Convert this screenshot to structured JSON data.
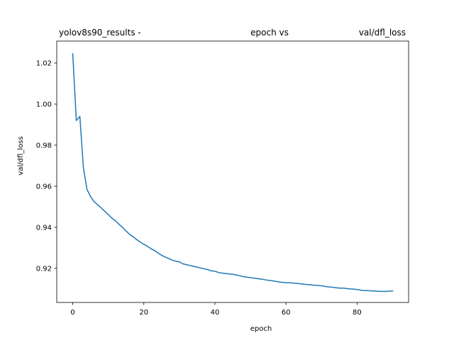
{
  "chart_data": {
    "type": "line",
    "title_segments": [
      "yolov8s90_results -",
      "epoch vs",
      "val/dfl_loss"
    ],
    "xlabel": "epoch",
    "ylabel": "val/dfl_loss",
    "xlim": [
      -4.5,
      94.5
    ],
    "ylim": [
      0.9034,
      1.0307
    ],
    "xticks": [
      0,
      20,
      40,
      60,
      80
    ],
    "xtick_labels": [
      "0",
      "20",
      "40",
      "60",
      "80"
    ],
    "yticks": [
      0.92,
      0.94,
      0.96,
      0.98,
      1.0,
      1.02
    ],
    "ytick_labels": [
      "0.92",
      "0.94",
      "0.96",
      "0.98",
      "1.00",
      "1.02"
    ],
    "grid": false,
    "series": [
      {
        "color": "#1f77b4",
        "x": [
          0,
          1,
          2,
          3,
          4,
          5,
          6,
          7,
          8,
          9,
          10,
          11,
          12,
          13,
          14,
          15,
          16,
          17,
          18,
          19,
          20,
          21,
          22,
          23,
          24,
          25,
          26,
          27,
          28,
          29,
          30,
          31,
          32,
          33,
          34,
          35,
          36,
          37,
          38,
          39,
          40,
          41,
          42,
          43,
          44,
          45,
          46,
          47,
          48,
          49,
          50,
          51,
          52,
          53,
          54,
          55,
          56,
          57,
          58,
          59,
          60,
          61,
          62,
          63,
          64,
          65,
          66,
          67,
          68,
          69,
          70,
          71,
          72,
          73,
          74,
          75,
          76,
          77,
          78,
          79,
          80,
          81,
          82,
          83,
          84,
          85,
          86,
          87,
          88,
          89,
          90
        ],
        "y": [
          1.0245,
          0.992,
          0.994,
          0.969,
          0.9585,
          0.955,
          0.9525,
          0.951,
          0.9495,
          0.9478,
          0.9462,
          0.9445,
          0.9432,
          0.9415,
          0.94,
          0.9382,
          0.9366,
          0.9354,
          0.934,
          0.9328,
          0.9317,
          0.9308,
          0.9296,
          0.9287,
          0.9275,
          0.9264,
          0.9255,
          0.9248,
          0.924,
          0.9235,
          0.9232,
          0.9222,
          0.9218,
          0.9214,
          0.921,
          0.9206,
          0.9202,
          0.9198,
          0.9194,
          0.9188,
          0.9186,
          0.918,
          0.9177,
          0.9175,
          0.9173,
          0.9171,
          0.9168,
          0.9164,
          0.916,
          0.9157,
          0.9155,
          0.9152,
          0.915,
          0.9148,
          0.9145,
          0.9142,
          0.914,
          0.9137,
          0.9134,
          0.9132,
          0.913,
          0.913,
          0.9128,
          0.9127,
          0.9125,
          0.9123,
          0.9121,
          0.912,
          0.9118,
          0.9117,
          0.9115,
          0.9112,
          0.911,
          0.9108,
          0.9106,
          0.9104,
          0.9104,
          0.9102,
          0.91,
          0.9099,
          0.9097,
          0.9094,
          0.9092,
          0.9092,
          0.909,
          0.909,
          0.9088,
          0.9088,
          0.9088,
          0.9089,
          0.909
        ]
      }
    ]
  }
}
